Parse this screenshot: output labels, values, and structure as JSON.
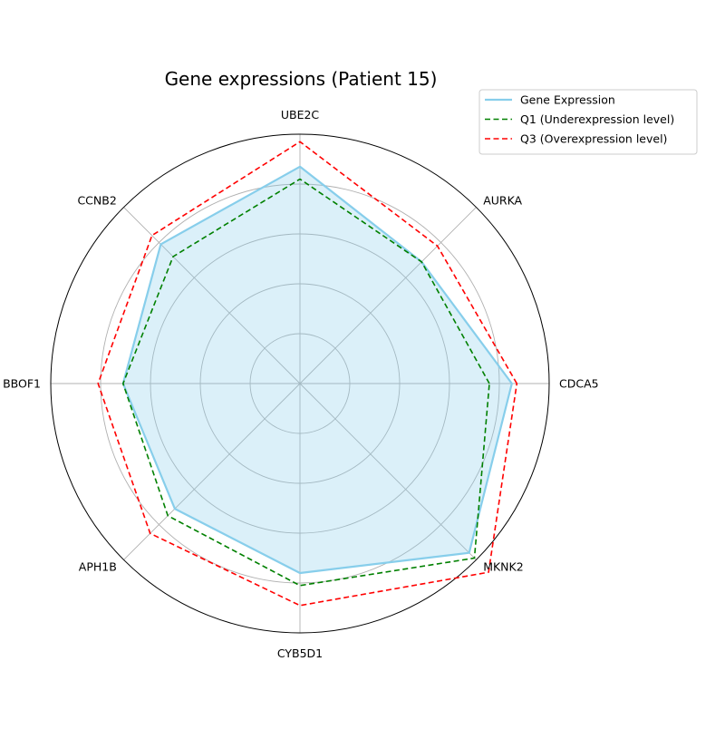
{
  "chart_data": {
    "type": "radar",
    "title": "Gene expressions (Patient 15)",
    "categories": [
      "CDCA5",
      "AURKA",
      "UBE2C",
      "CCNB2",
      "BBOF1",
      "APH1B",
      "CYB5D1",
      "MKNK2"
    ],
    "rlim": [
      0,
      1
    ],
    "radial_gridlines": [
      0.2,
      0.4,
      0.6,
      0.8
    ],
    "grid": true,
    "legend_position": "upper right, outside plot",
    "series": [
      {
        "name": "Gene Expression",
        "values": [
          0.85,
          0.69,
          0.87,
          0.79,
          0.71,
          0.71,
          0.76,
          0.96
        ],
        "color": "#87CEEB",
        "style": "solid",
        "fill": true,
        "fill_color": "#87CEEB"
      },
      {
        "name": "Q1 (Underexpression level)",
        "values": [
          0.76,
          0.69,
          0.82,
          0.72,
          0.71,
          0.75,
          0.81,
          0.99
        ],
        "color": "#008000",
        "style": "dashed",
        "fill": false
      },
      {
        "name": "Q3 (Overexpression level)",
        "values": [
          0.87,
          0.78,
          0.97,
          0.84,
          0.81,
          0.85,
          0.89,
          1.07
        ],
        "color": "#FF0000",
        "style": "dashed",
        "fill": false
      }
    ]
  }
}
